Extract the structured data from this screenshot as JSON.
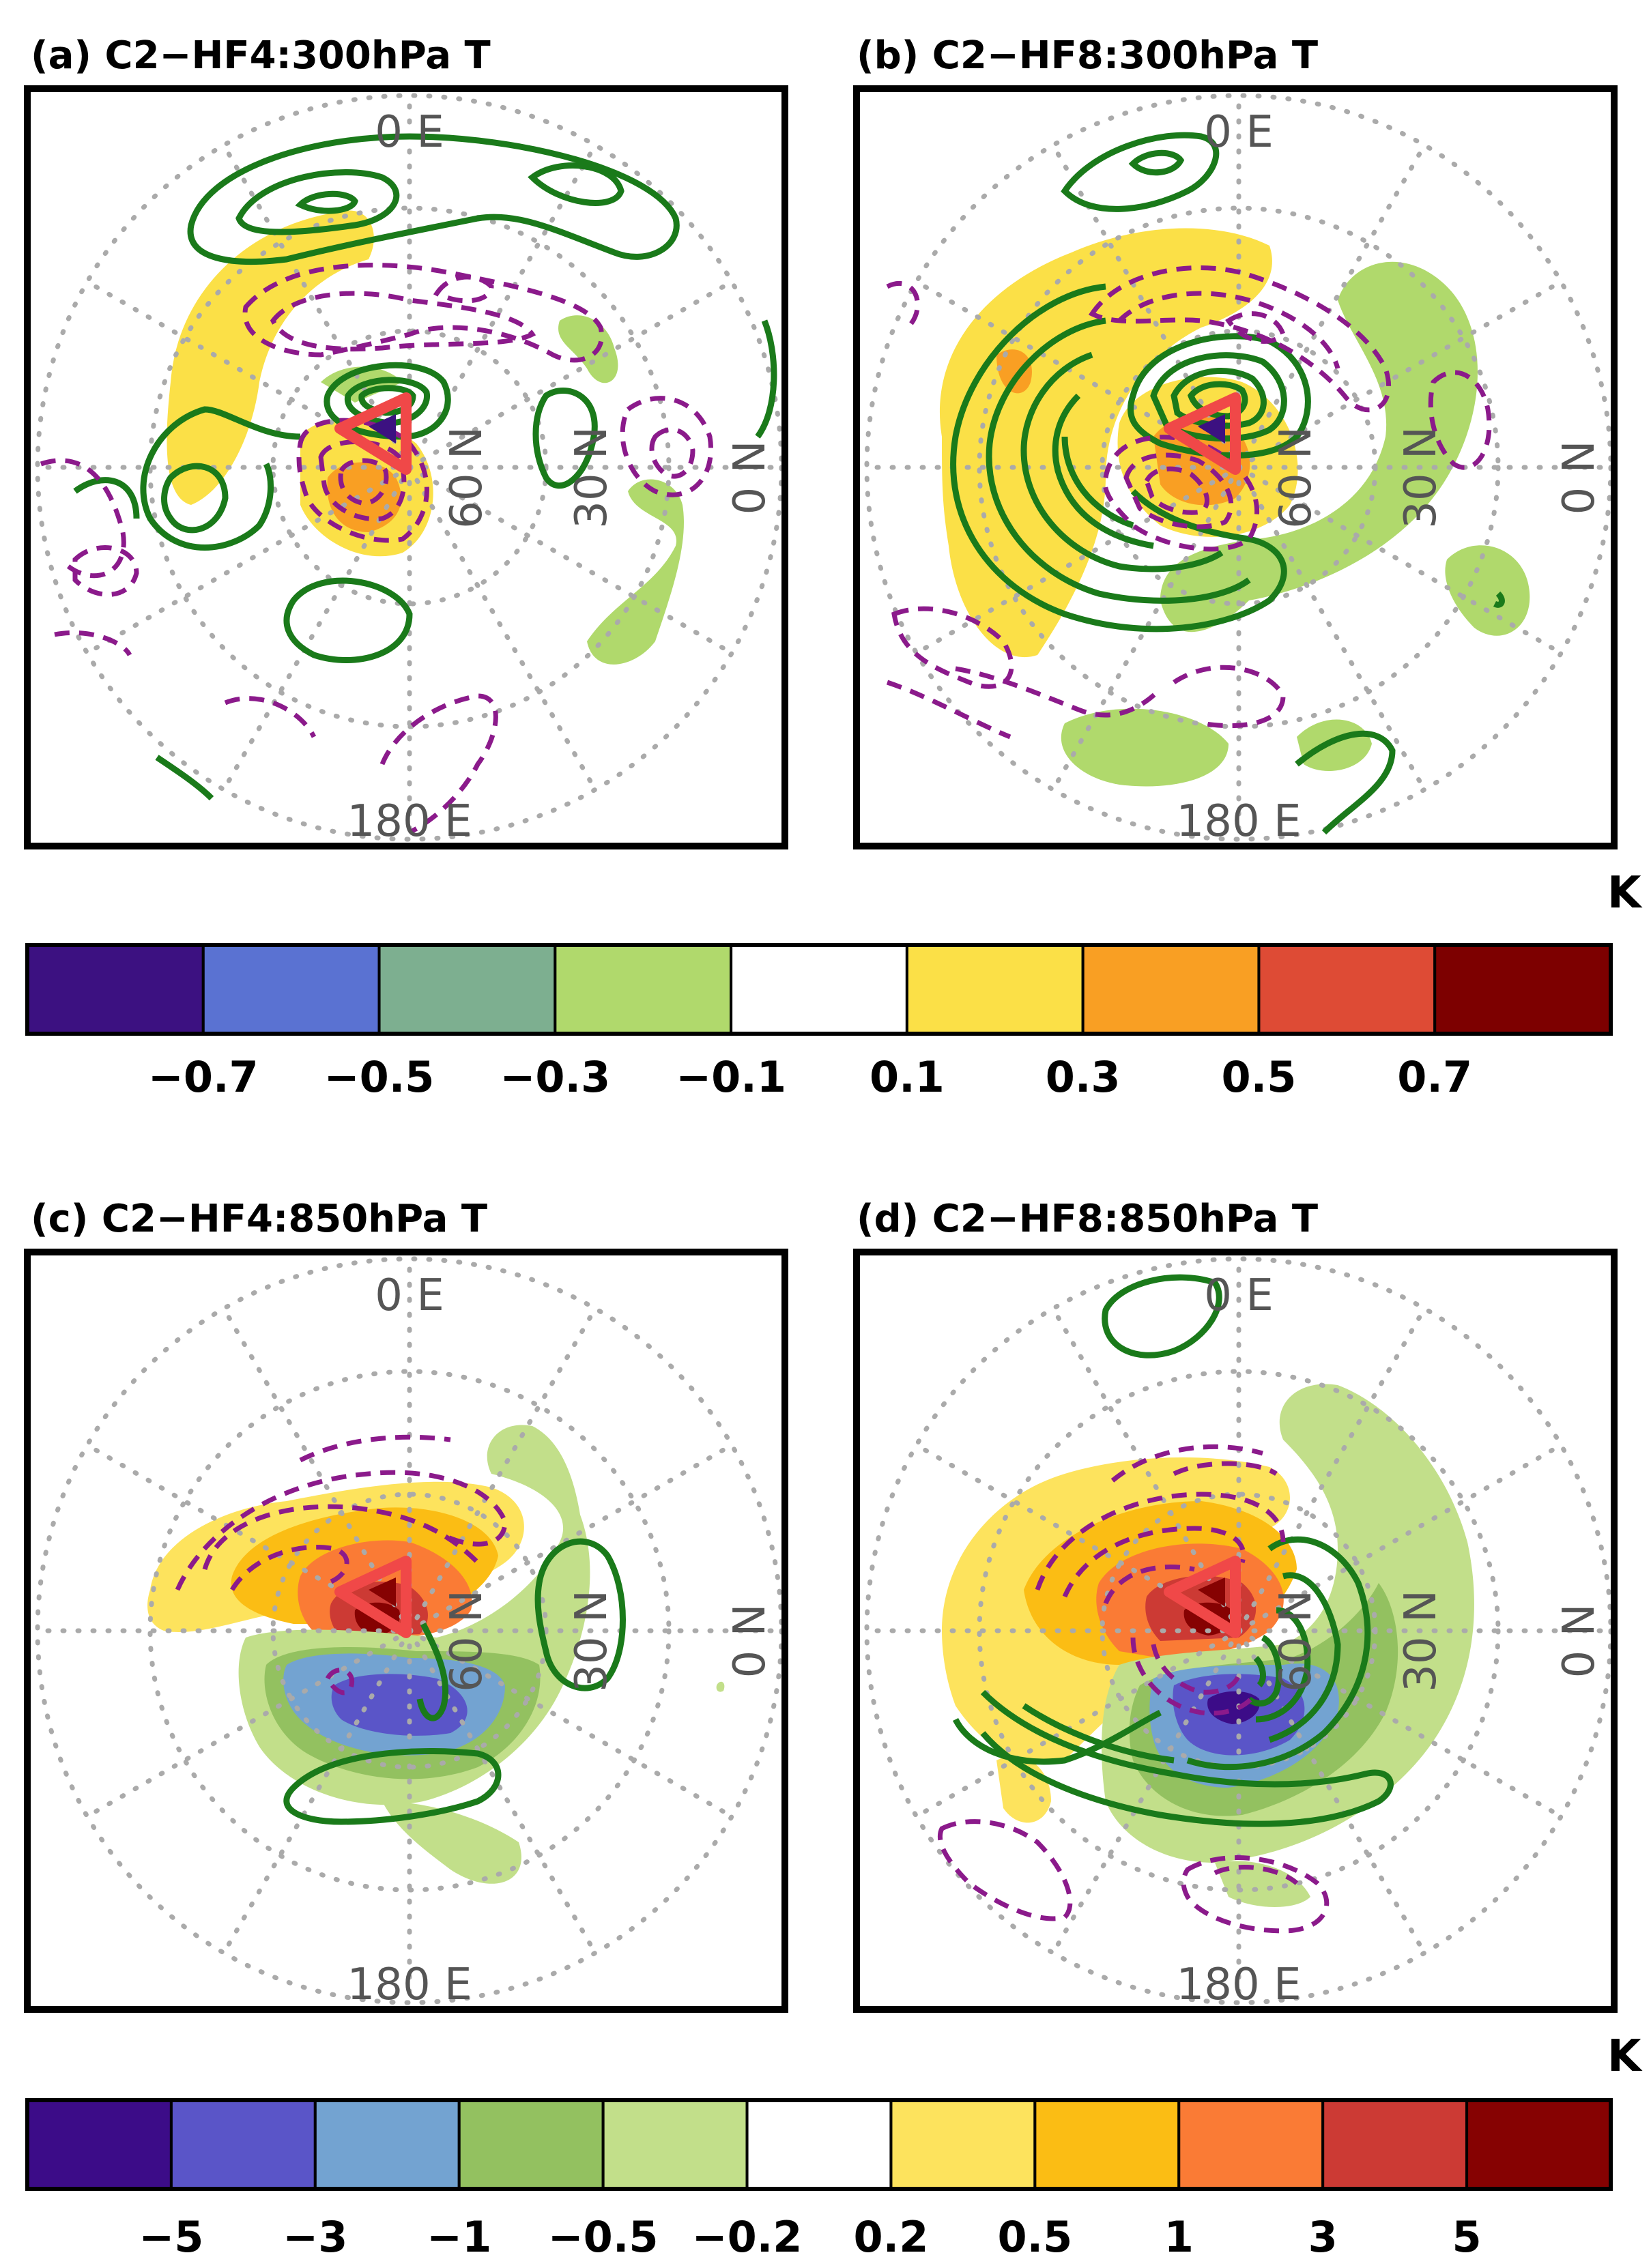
{
  "chart_data": {
    "type": "filled-contour-map",
    "projection": "north polar stereographic",
    "unit": "K",
    "colorbars": [
      {
        "name": "300hPa T",
        "unit": "K",
        "ticks": [
          "−0.7",
          "−0.5",
          "−0.3",
          "−0.1",
          "0.1",
          "0.3",
          "0.5",
          "0.7"
        ],
        "colors": [
          "#3c1181",
          "#5a72d2",
          "#7daf90",
          "#b0d96c",
          "#ffffff",
          "#fbe047",
          "#f99f23",
          "#de4b35",
          "#7d0000"
        ]
      },
      {
        "name": "850hPa T",
        "unit": "K",
        "ticks": [
          "−5",
          "−3",
          "−1",
          "−0.5",
          "−0.2",
          "0.2",
          "0.5",
          "1",
          "3",
          "5"
        ],
        "colors": [
          "#3c0c88",
          "#5a55c8",
          "#73a3d1",
          "#93c160",
          "#c2df8a",
          "#ffffff",
          "#fde35d",
          "#fbbd14",
          "#fa7b35",
          "#cc3a34",
          "#860202"
        ]
      }
    ],
    "panels": [
      {
        "id": "a",
        "title": "(a) C2−HF4:300hPa T",
        "level": "300hPa",
        "variable": "T",
        "experiment": "C2−HF4",
        "colorbar": 0,
        "labels": {
          "lon0": "0 E",
          "lon180": "180 E",
          "lat60": "60 N",
          "lat30": "30 N",
          "lat0": "0 N"
        },
        "shaded": [
          {
            "region": "upper-left arc",
            "sign": "+",
            "level": 0.1
          },
          {
            "region": "near pole, left of center",
            "sign": "+",
            "level": 0.3
          },
          {
            "region": "lower-right streak",
            "sign": "−",
            "level": -0.1
          },
          {
            "region": "small patch right of pole",
            "sign": "−",
            "level": -0.1
          }
        ],
        "contours": {
          "positive": [
            "top arc",
            "center nest",
            "left oval",
            "bottom-left oval",
            "right oval"
          ],
          "negative": [
            "ring around pole",
            "bottom-left",
            "bottom center",
            "right"
          ]
        }
      },
      {
        "id": "b",
        "title": "(b) C2−HF8:300hPa T",
        "level": "300hPa",
        "variable": "T",
        "experiment": "C2−HF8",
        "colorbar": 0,
        "labels": {
          "lon0": "0 E",
          "lon180": "180 E",
          "lat60": "60 N",
          "lat30": "30 N",
          "lat0": "0 N"
        },
        "shaded": [
          {
            "region": "left crescent",
            "sign": "+",
            "level": 0.1
          },
          {
            "region": "inner ring",
            "sign": "+",
            "level": 0.3
          },
          {
            "region": "right and lower band",
            "sign": "−",
            "level": -0.1
          }
        ],
        "contours": {
          "positive": [
            "center nest",
            "left spiral",
            "top",
            "bottom right"
          ],
          "negative": [
            "center-left nest",
            "upper ring",
            "left-bottom",
            "right"
          ]
        }
      },
      {
        "id": "c",
        "title": "(c) C2−HF4:850hPa T",
        "level": "850hPa",
        "variable": "T",
        "experiment": "C2−HF4",
        "colorbar": 1,
        "labels": {
          "lon0": "0 E",
          "lon180": "180 E",
          "lat60": "60 N",
          "lat30": "30 N",
          "lat0": "0 N"
        },
        "shaded": [
          {
            "region": "upper lobe",
            "sign": "+",
            "level": 3
          },
          {
            "region": "lower lobe",
            "sign": "−",
            "level": -3
          }
        ],
        "contours": {
          "positive": [
            "right oval",
            "bottom arc",
            "center"
          ],
          "negative": [
            "upper arcs"
          ]
        }
      },
      {
        "id": "d",
        "title": "(d) C2−HF8:850hPa T",
        "level": "850hPa",
        "variable": "T",
        "experiment": "C2−HF8",
        "colorbar": 1,
        "labels": {
          "lon0": "0 E",
          "lon180": "180 E",
          "lat60": "60 N",
          "lat30": "30 N",
          "lat0": "0 N"
        },
        "shaded": [
          {
            "region": "upper lobe",
            "sign": "+",
            "level": 3
          },
          {
            "region": "lower lobe",
            "sign": "−",
            "level": -3
          }
        ],
        "contours": {
          "positive": [
            "top oval",
            "right spiral",
            "bottom arcs"
          ],
          "negative": [
            "upper-left arcs",
            "bottom left",
            "bottom center"
          ]
        }
      }
    ]
  }
}
